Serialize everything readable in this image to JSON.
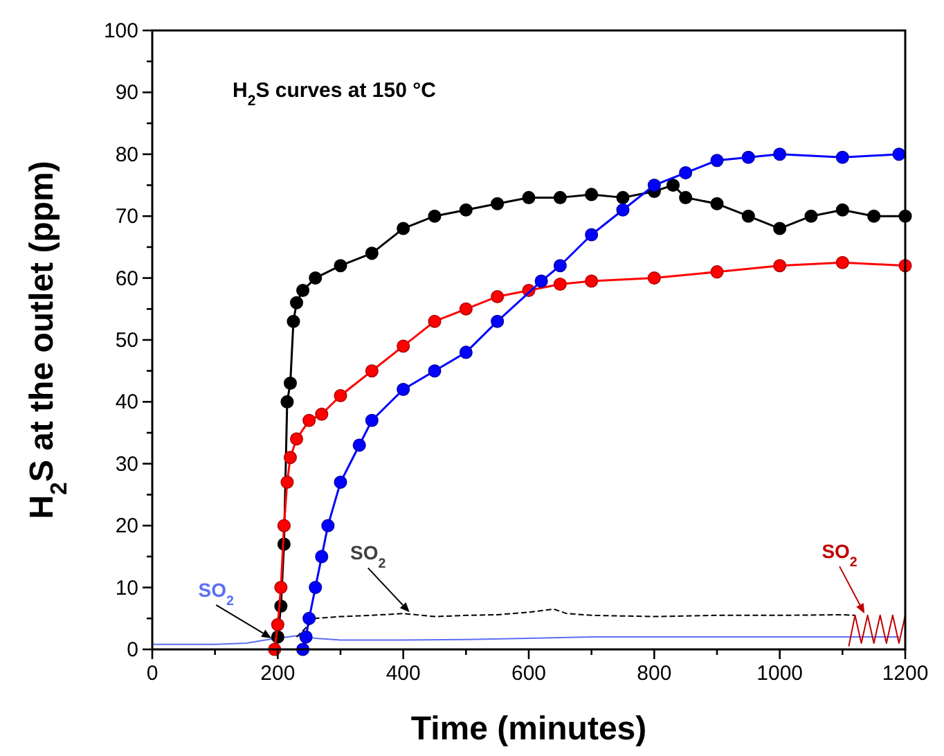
{
  "chart_data": {
    "type": "line",
    "xlabel": "Time (minutes)",
    "ylabel": "H$_{2}$S at the outlet (ppm)",
    "xlim": [
      0,
      1200
    ],
    "ylim": [
      0,
      100
    ],
    "xticks": [
      0,
      {
        "value": 100,
        "label": null
      },
      200,
      {
        "value": 300,
        "label": null
      },
      400,
      {
        "value": 500,
        "label": null
      },
      600,
      {
        "value": 700,
        "label": null
      },
      800,
      {
        "value": 900,
        "label": null
      },
      1000,
      {
        "value": 1100,
        "label": null
      },
      1200
    ],
    "yticks": [
      0,
      {
        "value": 5,
        "label": null
      },
      10,
      {
        "value": 15,
        "label": null
      },
      20,
      {
        "value": 25,
        "label": null
      },
      30,
      {
        "value": 35,
        "label": null
      },
      40,
      {
        "value": 45,
        "label": null
      },
      50,
      {
        "value": 55,
        "label": null
      },
      60,
      {
        "value": 65,
        "label": null
      },
      70,
      {
        "value": 75,
        "label": null
      },
      80,
      {
        "value": 85,
        "label": null
      },
      90,
      {
        "value": 95,
        "label": null
      },
      100
    ],
    "grid": false,
    "marker": "circle",
    "series": [
      {
        "color": "#5b6ef5",
        "marker": "none",
        "x": [
          0,
          100,
          150,
          180,
          200,
          230,
          260,
          300,
          400,
          500,
          600,
          700,
          800,
          900,
          1000,
          1100,
          1190
        ],
        "values": [
          0.8,
          0.8,
          1,
          1.5,
          null,
          2.2,
          1.8,
          1.5,
          1.5,
          1.6,
          1.8,
          2,
          2,
          2,
          2,
          2,
          2
        ]
      },
      {
        "color": "#000000",
        "marker": "none",
        "line_style": "dashed",
        "x": [
          230,
          250,
          260,
          300,
          350,
          400,
          450,
          500,
          550,
          600,
          640,
          660,
          700,
          800,
          900,
          1000,
          1100,
          1120
        ],
        "values": [
          2,
          4,
          5,
          5.3,
          5.5,
          5.8,
          5.3,
          5.5,
          5.6,
          6,
          6.5,
          5.8,
          5.5,
          5.3,
          5.5,
          5.5,
          5.6,
          5.5
        ]
      },
      {
        "color": "#c00000",
        "marker": "none",
        "x": [
          1110,
          1120,
          1130,
          1140,
          1150,
          1160,
          1170,
          1180,
          1190,
          1200
        ],
        "values": [
          0.5,
          5.5,
          1,
          5.5,
          1,
          5.5,
          1,
          5.5,
          1,
          5.5
        ]
      },
      {
        "color": "#000000",
        "x": [
          200,
          205,
          210,
          215,
          220,
          225,
          230,
          240,
          260,
          300,
          350,
          400,
          450,
          500,
          550,
          600,
          650,
          700,
          750,
          800,
          830,
          850,
          900,
          950,
          1000,
          1050,
          1100,
          1150,
          1200
        ],
        "values": [
          2,
          7,
          17,
          40,
          43,
          53,
          56,
          58,
          60,
          62,
          64,
          68,
          70,
          71,
          72,
          73,
          73,
          73.5,
          73,
          74,
          75,
          73,
          72,
          70,
          68,
          70,
          71,
          70,
          70
        ]
      },
      {
        "color": "#ff0000",
        "x": [
          195,
          200,
          205,
          210,
          215,
          220,
          230,
          250,
          270,
          300,
          350,
          400,
          450,
          500,
          550,
          600,
          650,
          700,
          800,
          900,
          1000,
          1100,
          1200
        ],
        "values": [
          0,
          4,
          10,
          20,
          27,
          31,
          34,
          37,
          38,
          41,
          45,
          49,
          53,
          55,
          57,
          58,
          59,
          59.5,
          60,
          61,
          62,
          62.5,
          62
        ]
      },
      {
        "color": "#0000ff",
        "x": [
          240,
          245,
          250,
          260,
          270,
          280,
          300,
          330,
          350,
          400,
          450,
          500,
          550,
          620,
          650,
          700,
          750,
          800,
          850,
          900,
          950,
          1000,
          1100,
          1190
        ],
        "values": [
          0,
          2,
          5,
          10,
          15,
          20,
          27,
          33,
          37,
          42,
          45,
          48,
          53,
          59.5,
          62,
          67,
          71,
          75,
          77,
          79,
          79.5,
          80,
          79.5,
          80
        ]
      }
    ],
    "annotations": [
      "H$_{2}$S curves at 150 °C",
      {
        "text": "SO$_{2}$",
        "x": 190,
        "y": 1.8
      },
      {
        "text": "SO$_{2}$",
        "x": 410,
        "y": 6
      },
      {
        "text": "SO$_{2}$",
        "x": 1135,
        "y": 5.8
      }
    ]
  }
}
